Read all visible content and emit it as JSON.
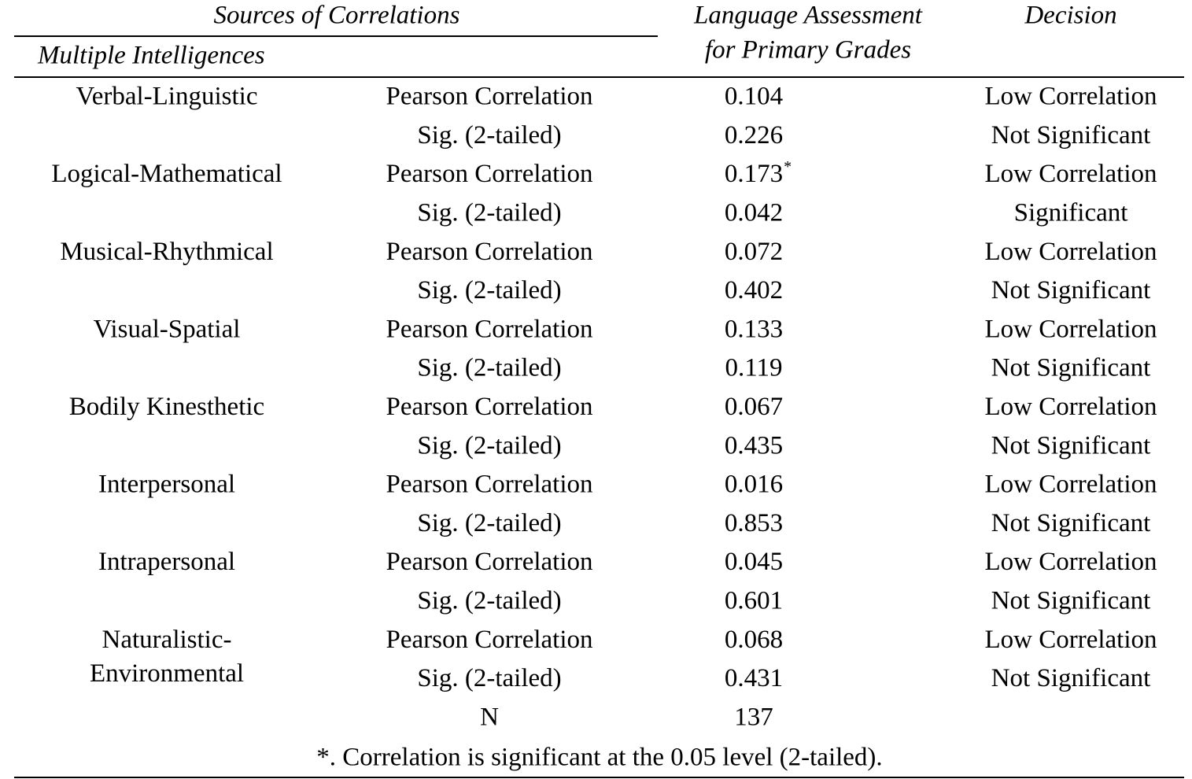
{
  "header": {
    "sources": "Sources of Correlations",
    "intelligences": "Multiple Intelligences",
    "assessment_lines": [
      "Language Assessment",
      "for Primary Grades"
    ],
    "decision": "Decision"
  },
  "groups": [
    {
      "name_lines": [
        "Verbal-Linguistic"
      ],
      "rows": [
        {
          "stat": "Pearson Correlation",
          "value": "0.104",
          "decision": "Low Correlation"
        },
        {
          "stat": "Sig. (2-tailed)",
          "value": "0.226",
          "decision": "Not Significant"
        }
      ]
    },
    {
      "name_lines": [
        "Logical-Mathematical"
      ],
      "rows": [
        {
          "stat": "Pearson Correlation",
          "value": "0.173",
          "marker": "*",
          "decision": "Low Correlation"
        },
        {
          "stat": "Sig. (2-tailed)",
          "value": "0.042",
          "decision": "Significant"
        }
      ]
    },
    {
      "name_lines": [
        "Musical-Rhythmical"
      ],
      "rows": [
        {
          "stat": "Pearson Correlation",
          "value": "0.072",
          "decision": "Low Correlation"
        },
        {
          "stat": "Sig. (2-tailed)",
          "value": "0.402",
          "decision": "Not Significant"
        }
      ]
    },
    {
      "name_lines": [
        "Visual-Spatial"
      ],
      "rows": [
        {
          "stat": "Pearson Correlation",
          "value": "0.133",
          "decision": "Low Correlation"
        },
        {
          "stat": "Sig. (2-tailed)",
          "value": "0.119",
          "decision": "Not Significant"
        }
      ]
    },
    {
      "name_lines": [
        "Bodily Kinesthetic"
      ],
      "rows": [
        {
          "stat": "Pearson Correlation",
          "value": "0.067",
          "decision": "Low Correlation"
        },
        {
          "stat": "Sig. (2-tailed)",
          "value": "0.435",
          "decision": "Not Significant"
        }
      ]
    },
    {
      "name_lines": [
        "Interpersonal"
      ],
      "rows": [
        {
          "stat": "Pearson Correlation",
          "value": "0.016",
          "decision": "Low Correlation"
        },
        {
          "stat": "Sig. (2-tailed)",
          "value": "0.853",
          "decision": "Not Significant"
        }
      ]
    },
    {
      "name_lines": [
        "Intrapersonal"
      ],
      "rows": [
        {
          "stat": "Pearson Correlation",
          "value": "0.045",
          "decision": "Low Correlation"
        },
        {
          "stat": "Sig. (2-tailed)",
          "value": "0.601",
          "decision": "Not Significant"
        }
      ]
    },
    {
      "name_lines": [
        "Naturalistic-",
        "Environmental"
      ],
      "rows": [
        {
          "stat": "Pearson Correlation",
          "value": "0.068",
          "decision": "Low Correlation"
        },
        {
          "stat": "Sig. (2-tailed)",
          "value": "0.431",
          "decision": "Not Significant"
        }
      ]
    }
  ],
  "n_row": {
    "stat": "N",
    "value": "137"
  },
  "footnote": "*. Correlation is significant at the 0.05 level (2-tailed)."
}
